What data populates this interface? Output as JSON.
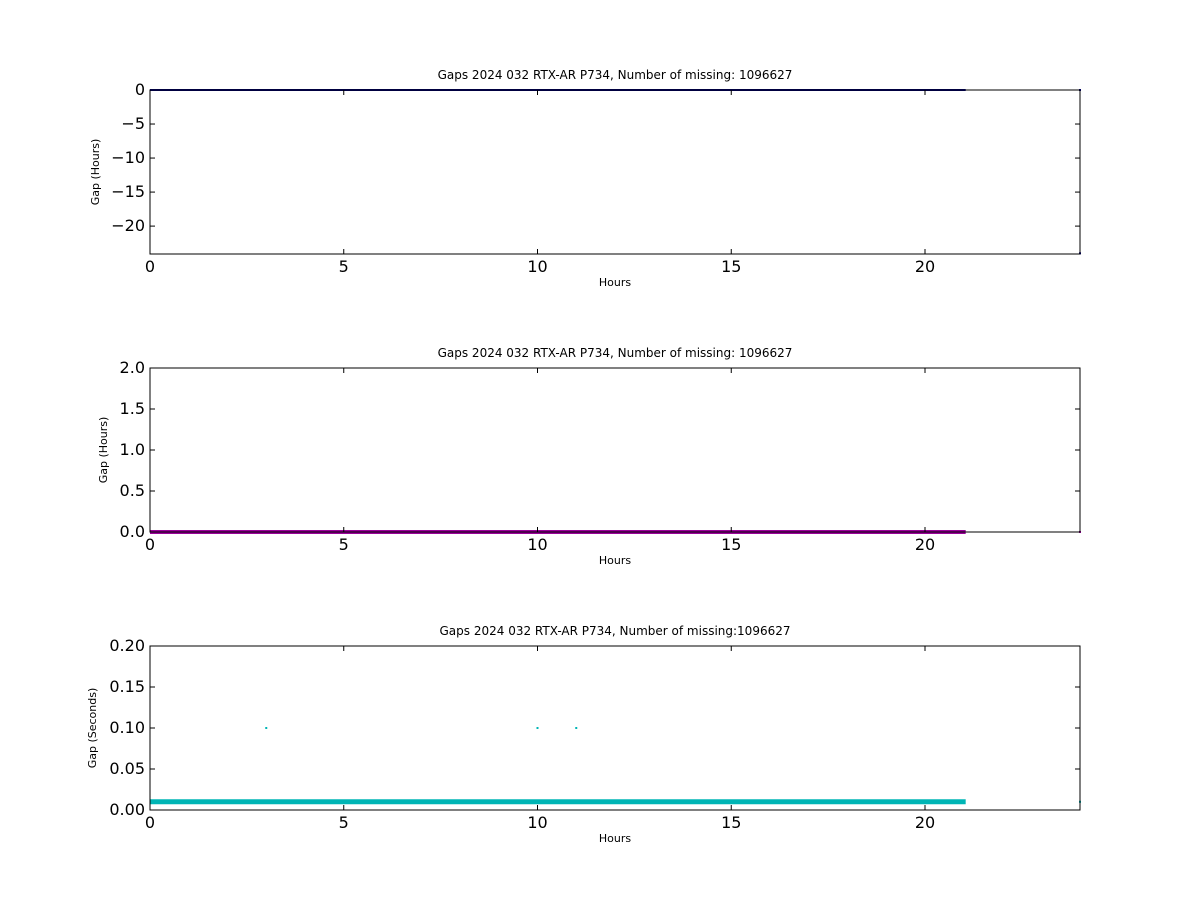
{
  "chart_data": [
    {
      "type": "scatter",
      "title": "Gaps 2024 032 RTX-AR  P734, Number of missing: 1096627",
      "xlabel": "Hours",
      "ylabel": "Gap (Hours)",
      "xlim": [
        0,
        24
      ],
      "ylim": [
        -24.1,
        0
      ],
      "xticks": [
        0,
        5,
        10,
        15,
        20
      ],
      "yticks": [
        0,
        -5,
        -10,
        -15,
        -20
      ],
      "xtick_labels": [
        "0",
        "5",
        "10",
        "15",
        "20"
      ],
      "ytick_labels": [
        "0",
        "−5",
        "−10",
        "−15",
        "−20"
      ],
      "color": "#000080",
      "series": [
        {
          "segments": [
            [
              0,
              0,
              21.05,
              0
            ]
          ],
          "points": [
            [
              24,
              0
            ],
            [
              24,
              -24
            ]
          ]
        }
      ]
    },
    {
      "type": "scatter",
      "title": "Gaps 2024 032 RTX-AR  P734, Number of missing: 1096627",
      "xlabel": "Hours",
      "ylabel": "Gap (Hours)",
      "xlim": [
        0,
        24
      ],
      "ylim": [
        0,
        2
      ],
      "xticks": [
        0,
        5,
        10,
        15,
        20
      ],
      "yticks": [
        0,
        0.5,
        1.0,
        1.5,
        2.0
      ],
      "xtick_labels": [
        "0",
        "5",
        "10",
        "15",
        "20"
      ],
      "ytick_labels": [
        "0.0",
        "0.5",
        "1.0",
        "1.5",
        "2.0"
      ],
      "color": "#9b009b",
      "series": [
        {
          "segments": [
            [
              0,
              0,
              21.05,
              0
            ]
          ],
          "points": [
            [
              24,
              0
            ]
          ]
        }
      ]
    },
    {
      "type": "scatter",
      "title": "Gaps 2024 032 RTX-AR  P734, Number of missing:1096627",
      "xlabel": "Hours",
      "ylabel": "Gap (Seconds)",
      "xlim": [
        0,
        24
      ],
      "ylim": [
        0,
        0.2
      ],
      "xticks": [
        0,
        5,
        10,
        15,
        20
      ],
      "yticks": [
        0,
        0.05,
        0.1,
        0.15,
        0.2
      ],
      "xtick_labels": [
        "0",
        "5",
        "10",
        "15",
        "20"
      ],
      "ytick_labels": [
        "0.00",
        "0.05",
        "0.10",
        "0.15",
        "0.20"
      ],
      "color": "#00b5b5",
      "series": [
        {
          "segments": [
            [
              0,
              0.01,
              21.05,
              0.01
            ]
          ],
          "points": [
            [
              3,
              0.1
            ],
            [
              10,
              0.1
            ],
            [
              11,
              0.1
            ],
            [
              24,
              0.01
            ]
          ]
        }
      ]
    }
  ]
}
